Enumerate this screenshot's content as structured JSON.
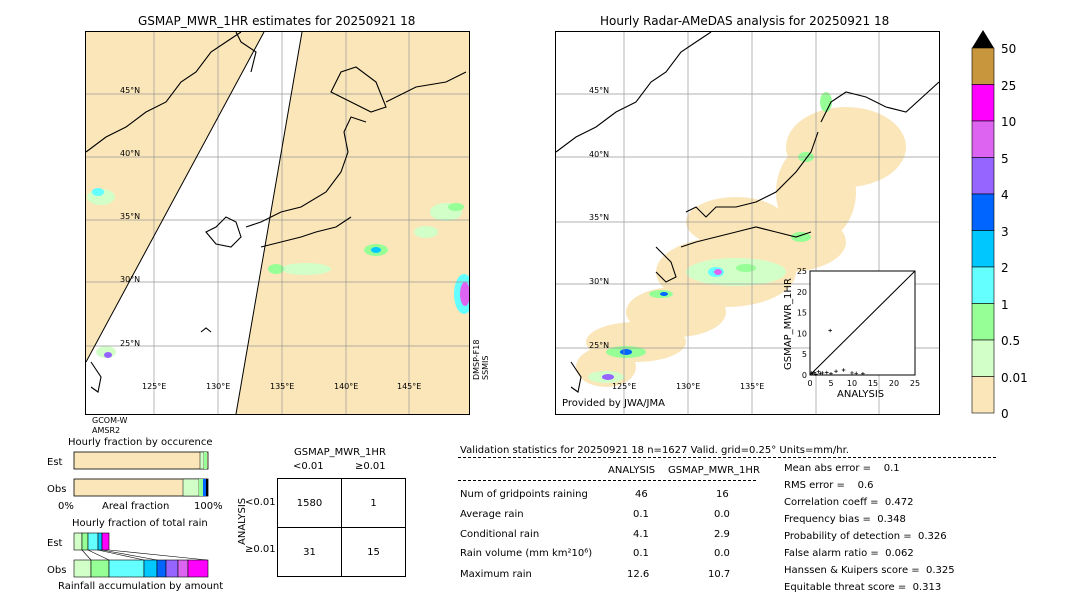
{
  "left_map": {
    "title": "GSMAP_MWR_1HR estimates for 20250921 18",
    "lat_labels": [
      "45°N",
      "40°N",
      "35°N",
      "30°N",
      "25°N"
    ],
    "lon_labels": [
      "125°E",
      "130°E",
      "135°E",
      "140°E",
      "145°E"
    ],
    "sat_left": "GCOM-W\nAMSR2",
    "sat_right": "DMSP-F18\nSSMIS"
  },
  "right_map": {
    "title": "Hourly Radar-AMeDAS analysis for 20250921 18",
    "lat_labels": [
      "45°N",
      "40°N",
      "35°N",
      "30°N",
      "25°N"
    ],
    "lon_labels": [
      "125°E",
      "130°E",
      "135°E"
    ],
    "credit": "Provided by JWA/JMA"
  },
  "colorbar": {
    "labels": [
      "50",
      "25",
      "10",
      "5",
      "4",
      "3",
      "2",
      "1",
      "0.5",
      "0.01",
      "0"
    ],
    "colors": [
      "#c8963c",
      "#ff00ff",
      "#dc64f0",
      "#9664ff",
      "#0064ff",
      "#00c8ff",
      "#64ffff",
      "#96ff96",
      "#d2ffc8",
      "#fae6b9"
    ]
  },
  "hist": {
    "title_occ": "Hourly fraction by occurence",
    "title_rain": "Hourly fraction of total rain",
    "est": "Est",
    "obs": "Obs",
    "axis0": "0%",
    "axis_mid": "Areal fraction",
    "axis100": "100%",
    "bottom_label": "Rainfall accumulation by amount"
  },
  "contingency": {
    "title": "GSMAP_MWR_1HR",
    "col_lt": "<0.01",
    "col_ge": "≥0.01",
    "row_axis": "ANALYSIS",
    "row_lt": "<0.01",
    "row_ge": "≥0.01",
    "cells": [
      "1580",
      "1",
      "31",
      "15"
    ]
  },
  "validation": {
    "header": "Validation statistics for 20250921 18  n=1627 Valid. grid=0.25° Units=mm/hr.",
    "col_analysis": "ANALYSIS",
    "col_gsmap": "GSMAP_MWR_1HR",
    "rows": [
      {
        "label": "Num of gridpoints raining",
        "a": "46",
        "g": "16"
      },
      {
        "label": "Average rain",
        "a": "0.1",
        "g": "0.0"
      },
      {
        "label": "Conditional rain",
        "a": "4.1",
        "g": "2.9"
      },
      {
        "label": "Rain volume (mm km²10⁶)",
        "a": "0.1",
        "g": "0.0"
      },
      {
        "label": "Maximum rain",
        "a": "12.6",
        "g": "10.7"
      }
    ],
    "scores": [
      "Mean abs error =    0.1",
      "RMS error =    0.6",
      "Correlation coeff =  0.472",
      "Frequency bias =  0.348",
      "Probability of detection =  0.326",
      "False alarm ratio =  0.062",
      "Hanssen & Kuipers score =  0.325",
      "Equitable threat score =  0.313"
    ]
  },
  "chart_data": {
    "type": "scatter",
    "xlabel": "ANALYSIS",
    "ylabel": "GSMAP_MWR_1HR",
    "xlim": [
      0,
      25
    ],
    "ylim": [
      0,
      25
    ],
    "ticks": [
      "0",
      "5",
      "10",
      "15",
      "20",
      "25"
    ],
    "points": [
      [
        4.8,
        10.7
      ],
      [
        0.3,
        0.5
      ],
      [
        0.6,
        0.3
      ],
      [
        1.0,
        0.6
      ],
      [
        1.4,
        0.2
      ],
      [
        2.0,
        0.8
      ],
      [
        2.5,
        0.4
      ],
      [
        3.0,
        0.5
      ],
      [
        4.0,
        0.6
      ],
      [
        5.0,
        0.3
      ],
      [
        6.2,
        0.9
      ],
      [
        8.0,
        1.2
      ],
      [
        10.0,
        0.5
      ],
      [
        11.0,
        0.4
      ],
      [
        12.6,
        0.3
      ]
    ]
  }
}
